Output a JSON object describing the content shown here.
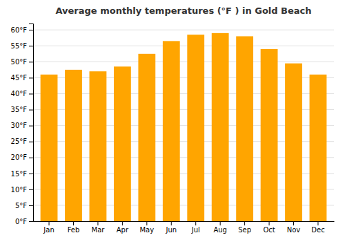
{
  "chart_data": {
    "type": "bar",
    "title": "Average monthly temperatures (°F ) in Gold Beach",
    "categories": [
      "Jan",
      "Feb",
      "Mar",
      "Apr",
      "May",
      "Jun",
      "Jul",
      "Aug",
      "Sep",
      "Oct",
      "Nov",
      "Dec"
    ],
    "values": [
      46,
      47.5,
      47,
      48.5,
      52.5,
      56.5,
      58.5,
      59,
      58,
      54,
      49.5,
      46
    ],
    "color": "#FFA500",
    "ylim": [
      0,
      62
    ],
    "yticks": [
      {
        "value": 0,
        "label": "0°F"
      },
      {
        "value": 5,
        "label": "5°F"
      },
      {
        "value": 10,
        "label": "10°F"
      },
      {
        "value": 15,
        "label": "15°F"
      },
      {
        "value": 20,
        "label": "20°F"
      },
      {
        "value": 25,
        "label": "25°F"
      },
      {
        "value": 30,
        "label": "30°F"
      },
      {
        "value": 35,
        "label": "35°F"
      },
      {
        "value": 40,
        "label": "40°F"
      },
      {
        "value": 45,
        "label": "45°F"
      },
      {
        "value": 50,
        "label": "50°F"
      },
      {
        "value": 55,
        "label": "55°F"
      },
      {
        "value": 60,
        "label": "60°F"
      }
    ],
    "grid": true
  }
}
